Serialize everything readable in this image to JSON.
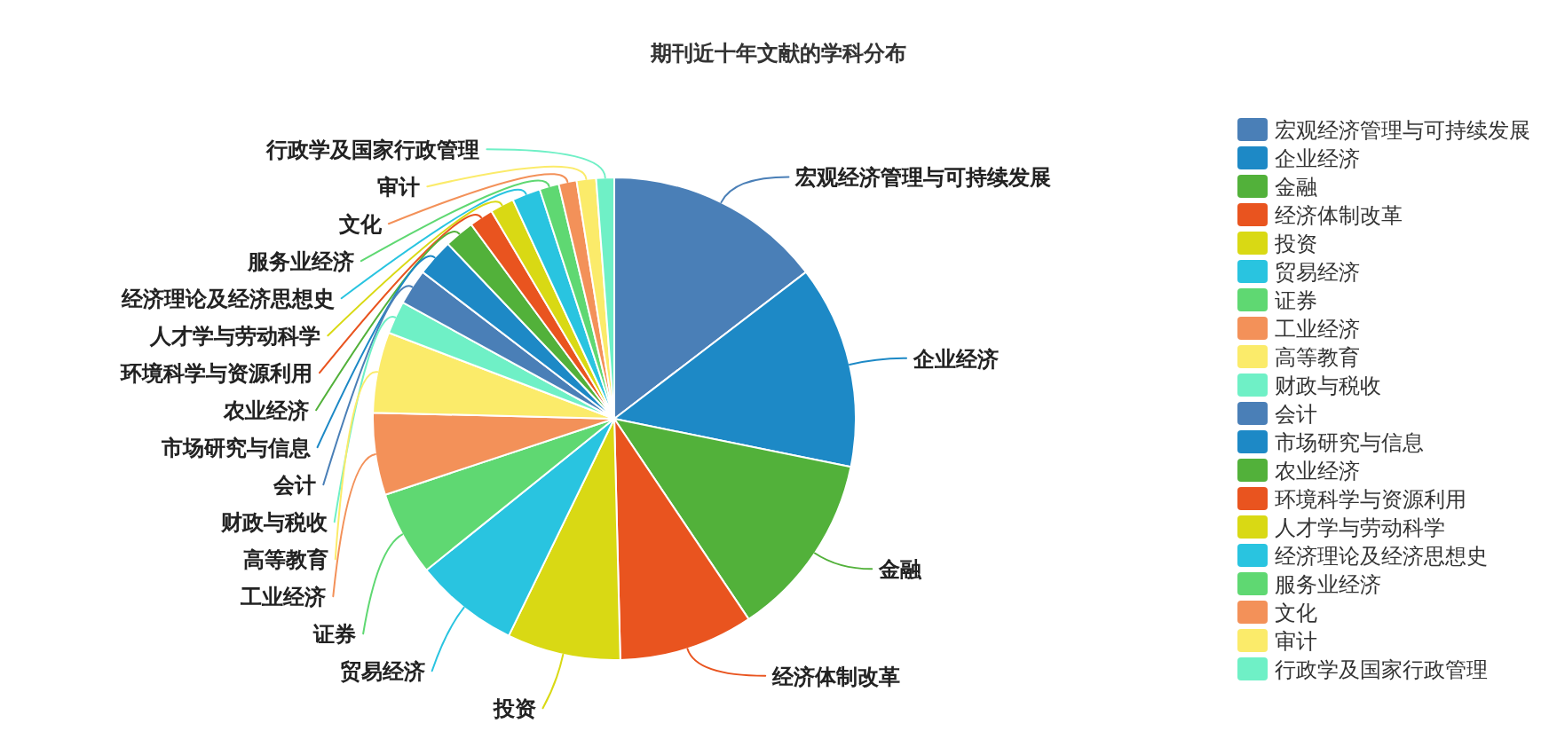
{
  "chart_data": {
    "type": "pie",
    "title": "期刊近十年文献的学科分布",
    "categories": [
      "宏观经济管理与可持续发展",
      "企业经济",
      "金融",
      "经济体制改革",
      "投资",
      "贸易经济",
      "证券",
      "工业经济",
      "高等教育",
      "财政与税收",
      "会计",
      "市场研究与信息",
      "农业经济",
      "环境科学与资源利用",
      "人才学与劳动科学",
      "经济理论及经济思想史",
      "服务业经济",
      "文化",
      "审计",
      "行政学及国家行政管理"
    ],
    "values": [
      14.6,
      13.6,
      12.4,
      9.0,
      7.6,
      7.0,
      5.7,
      5.5,
      5.4,
      2.2,
      2.4,
      2.5,
      2.0,
      1.6,
      1.6,
      1.9,
      1.3,
      1.2,
      1.3,
      1.2
    ],
    "colors": [
      "#4a7fb7",
      "#1d89c6",
      "#52b13a",
      "#e9541f",
      "#d9d914",
      "#29c4e0",
      "#5fd872",
      "#f39159",
      "#fbeb6a",
      "#6ff0c6",
      "#4a7fb7",
      "#1d89c6",
      "#52b13a",
      "#e9541f",
      "#d9d914",
      "#29c4e0",
      "#5fd872",
      "#f39159",
      "#fbeb6a",
      "#6ff0c6"
    ],
    "legend": "right"
  }
}
